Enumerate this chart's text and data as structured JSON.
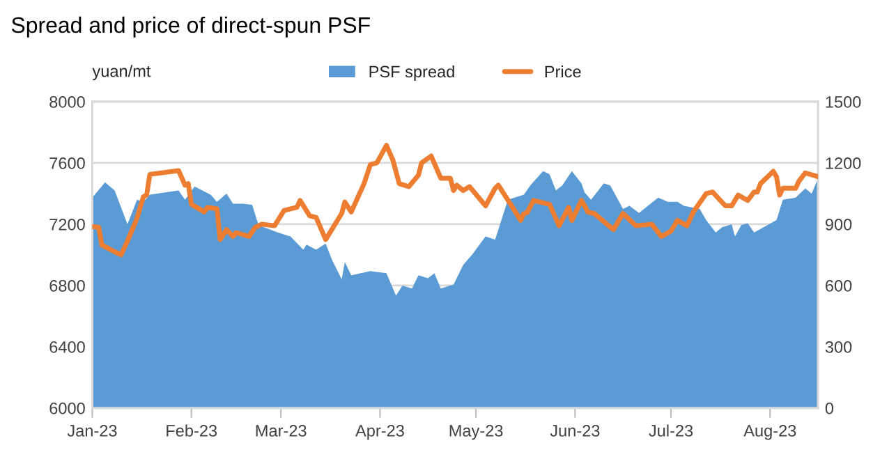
{
  "chart_data": {
    "type": "line",
    "title": "Spread and price of direct-spun PSF",
    "ylabel": "yuan/mt",
    "xlim": [
      "2023-01-01",
      "2023-08-16"
    ],
    "xticks": [
      {
        "value": "2023-01-01",
        "label": "Jan-23"
      },
      {
        "value": "2023-02-01",
        "label": "Feb-23"
      },
      {
        "value": "2023-03-01",
        "label": "Mar-23"
      },
      {
        "value": "2023-04-01",
        "label": "Apr-23"
      },
      {
        "value": "2023-05-01",
        "label": "May-23"
      },
      {
        "value": "2023-06-01",
        "label": "Jun-23"
      },
      {
        "value": "2023-07-01",
        "label": "Jul-23"
      },
      {
        "value": "2023-08-01",
        "label": "Aug-23"
      }
    ],
    "ylim": [
      6000,
      8000
    ],
    "yticks": [
      6000,
      6400,
      6800,
      7200,
      7600,
      8000
    ],
    "y2lim": [
      0,
      1500
    ],
    "y2ticks": [
      0,
      300,
      600,
      900,
      1200,
      1500
    ],
    "grid": "y",
    "legend": "top",
    "series": [
      {
        "name": "PSF spread",
        "type": "area",
        "axis": "y2",
        "color": "#5b9bd5",
        "x": [
          "2023-01-01",
          "2023-01-05",
          "2023-01-08",
          "2023-01-12",
          "2023-01-15",
          "2023-01-17",
          "2023-01-19",
          "2023-01-28",
          "2023-01-30",
          "2023-02-02",
          "2023-02-07",
          "2023-02-09",
          "2023-02-12",
          "2023-02-14",
          "2023-02-17",
          "2023-02-20",
          "2023-02-22",
          "2023-02-28",
          "2023-03-04",
          "2023-03-08",
          "2023-03-09",
          "2023-03-12",
          "2023-03-15",
          "2023-03-17",
          "2023-03-20",
          "2023-03-21",
          "2023-03-23",
          "2023-03-26",
          "2023-03-29",
          "2023-04-03",
          "2023-04-06",
          "2023-04-08",
          "2023-04-11",
          "2023-04-13",
          "2023-04-16",
          "2023-04-18",
          "2023-04-20",
          "2023-04-24",
          "2023-04-27",
          "2023-04-30",
          "2023-05-04",
          "2023-05-07",
          "2023-05-11",
          "2023-05-16",
          "2023-05-18",
          "2023-05-22",
          "2023-05-24",
          "2023-05-26",
          "2023-05-28",
          "2023-05-31",
          "2023-06-03",
          "2023-06-04",
          "2023-06-06",
          "2023-06-10",
          "2023-06-12",
          "2023-06-16",
          "2023-06-18",
          "2023-06-21",
          "2023-06-27",
          "2023-06-30",
          "2023-07-03",
          "2023-07-05",
          "2023-07-10",
          "2023-07-12",
          "2023-07-15",
          "2023-07-17",
          "2023-07-20",
          "2023-07-21",
          "2023-07-23",
          "2023-07-25",
          "2023-07-27",
          "2023-07-30",
          "2023-08-03",
          "2023-08-05",
          "2023-08-09",
          "2023-08-12",
          "2023-08-14",
          "2023-08-16"
        ],
        "values": [
          1030,
          1105,
          1065,
          900,
          1020,
          1010,
          1045,
          1065,
          1020,
          1085,
          1045,
          1010,
          1050,
          1000,
          1000,
          995,
          895,
          860,
          840,
          775,
          800,
          775,
          805,
          725,
          630,
          715,
          650,
          660,
          670,
          660,
          550,
          600,
          585,
          650,
          635,
          660,
          585,
          605,
          700,
          755,
          840,
          825,
          1020,
          1045,
          1090,
          1160,
          1145,
          1065,
          1090,
          1160,
          1100,
          1055,
          1020,
          1100,
          1090,
          975,
          990,
          955,
          1030,
          1010,
          1010,
          990,
          975,
          920,
          860,
          885,
          900,
          840,
          895,
          905,
          860,
          885,
          920,
          1020,
          1030,
          1075,
          1050,
          1125
        ]
      },
      {
        "name": "Price",
        "color": "#ed7d31",
        "x": [
          "2023-01-01",
          "2023-01-03",
          "2023-01-04",
          "2023-01-08",
          "2023-01-10",
          "2023-01-12",
          "2023-01-15",
          "2023-01-17",
          "2023-01-18",
          "2023-01-19",
          "2023-01-28",
          "2023-01-30",
          "2023-01-31",
          "2023-02-01",
          "2023-02-05",
          "2023-02-06",
          "2023-02-09",
          "2023-02-10",
          "2023-02-12",
          "2023-02-14",
          "2023-02-15",
          "2023-02-19",
          "2023-02-21",
          "2023-02-23",
          "2023-02-27",
          "2023-03-02",
          "2023-03-06",
          "2023-03-07",
          "2023-03-10",
          "2023-03-12",
          "2023-03-15",
          "2023-03-20",
          "2023-03-21",
          "2023-03-23",
          "2023-03-27",
          "2023-03-29",
          "2023-03-31",
          "2023-04-03",
          "2023-04-05",
          "2023-04-07",
          "2023-04-10",
          "2023-04-13",
          "2023-04-14",
          "2023-04-17",
          "2023-04-20",
          "2023-04-23",
          "2023-04-24",
          "2023-04-25",
          "2023-04-27",
          "2023-04-29",
          "2023-05-04",
          "2023-05-07",
          "2023-05-08",
          "2023-05-10",
          "2023-05-15",
          "2023-05-16",
          "2023-05-17",
          "2023-05-19",
          "2023-05-24",
          "2023-05-27",
          "2023-05-30",
          "2023-05-31",
          "2023-06-03",
          "2023-06-04",
          "2023-06-05",
          "2023-06-07",
          "2023-06-13",
          "2023-06-16",
          "2023-06-20",
          "2023-06-25",
          "2023-06-28",
          "2023-07-01",
          "2023-07-03",
          "2023-07-06",
          "2023-07-08",
          "2023-07-12",
          "2023-07-14",
          "2023-07-18",
          "2023-07-20",
          "2023-07-22",
          "2023-07-25",
          "2023-07-27",
          "2023-07-28",
          "2023-07-29",
          "2023-08-02",
          "2023-08-03",
          "2023-08-04",
          "2023-08-05",
          "2023-08-09",
          "2023-08-10",
          "2023-08-12",
          "2023-08-16"
        ],
        "values": [
          7185,
          7180,
          7065,
          7020,
          7000,
          7090,
          7240,
          7380,
          7390,
          7525,
          7550,
          7455,
          7465,
          7330,
          7280,
          7310,
          7300,
          7100,
          7165,
          7120,
          7145,
          7120,
          7180,
          7200,
          7190,
          7290,
          7310,
          7355,
          7255,
          7245,
          7100,
          7270,
          7345,
          7280,
          7465,
          7590,
          7600,
          7715,
          7620,
          7465,
          7445,
          7520,
          7600,
          7645,
          7500,
          7500,
          7420,
          7455,
          7420,
          7445,
          7320,
          7435,
          7455,
          7390,
          7225,
          7270,
          7275,
          7355,
          7330,
          7190,
          7310,
          7225,
          7355,
          7320,
          7280,
          7270,
          7165,
          7270,
          7190,
          7200,
          7120,
          7155,
          7225,
          7190,
          7280,
          7400,
          7410,
          7320,
          7320,
          7390,
          7355,
          7410,
          7410,
          7465,
          7545,
          7510,
          7390,
          7435,
          7435,
          7480,
          7535,
          7510
        ]
      }
    ]
  }
}
